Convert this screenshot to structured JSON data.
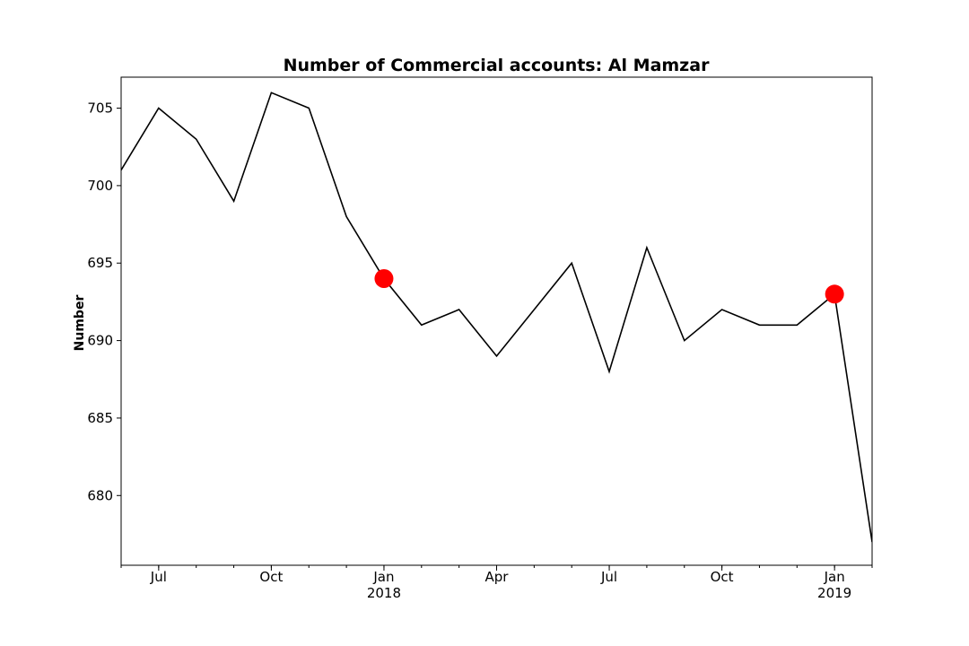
{
  "chart_data": {
    "type": "line",
    "title": "Number of Commercial accounts: Al Mamzar",
    "xlabel": "",
    "ylabel": "Number",
    "x": [
      "2017-06",
      "2017-07",
      "2017-08",
      "2017-09",
      "2017-10",
      "2017-11",
      "2017-12",
      "2018-01",
      "2018-02",
      "2018-03",
      "2018-04",
      "2018-05",
      "2018-06",
      "2018-07",
      "2018-08",
      "2018-09",
      "2018-10",
      "2018-11",
      "2018-12",
      "2019-01",
      "2019-02"
    ],
    "series": [
      {
        "values": [
          701,
          705,
          703,
          699,
          706,
          705,
          698,
          694,
          691,
          692,
          689,
          692,
          695,
          688,
          696,
          690,
          692,
          691,
          691,
          693,
          677
        ],
        "color": "#000000"
      }
    ],
    "highlighted_points": [
      {
        "x": "2018-01",
        "y": 694,
        "color": "#ff0000"
      },
      {
        "x": "2019-01",
        "y": 693,
        "color": "#ff0000"
      }
    ],
    "ylim": [
      675.5,
      707
    ],
    "yticks": [
      680,
      685,
      690,
      695,
      700,
      705
    ],
    "xticks": [
      {
        "x": "2017-07",
        "label": "Jul",
        "sublabel": ""
      },
      {
        "x": "2017-10",
        "label": "Oct",
        "sublabel": ""
      },
      {
        "x": "2018-01",
        "label": "Jan",
        "sublabel": "2018"
      },
      {
        "x": "2018-04",
        "label": "Apr",
        "sublabel": ""
      },
      {
        "x": "2018-07",
        "label": "Jul",
        "sublabel": ""
      },
      {
        "x": "2018-10",
        "label": "Oct",
        "sublabel": ""
      },
      {
        "x": "2019-01",
        "label": "Jan",
        "sublabel": "2019"
      }
    ],
    "grid": false,
    "legend": "none"
  }
}
